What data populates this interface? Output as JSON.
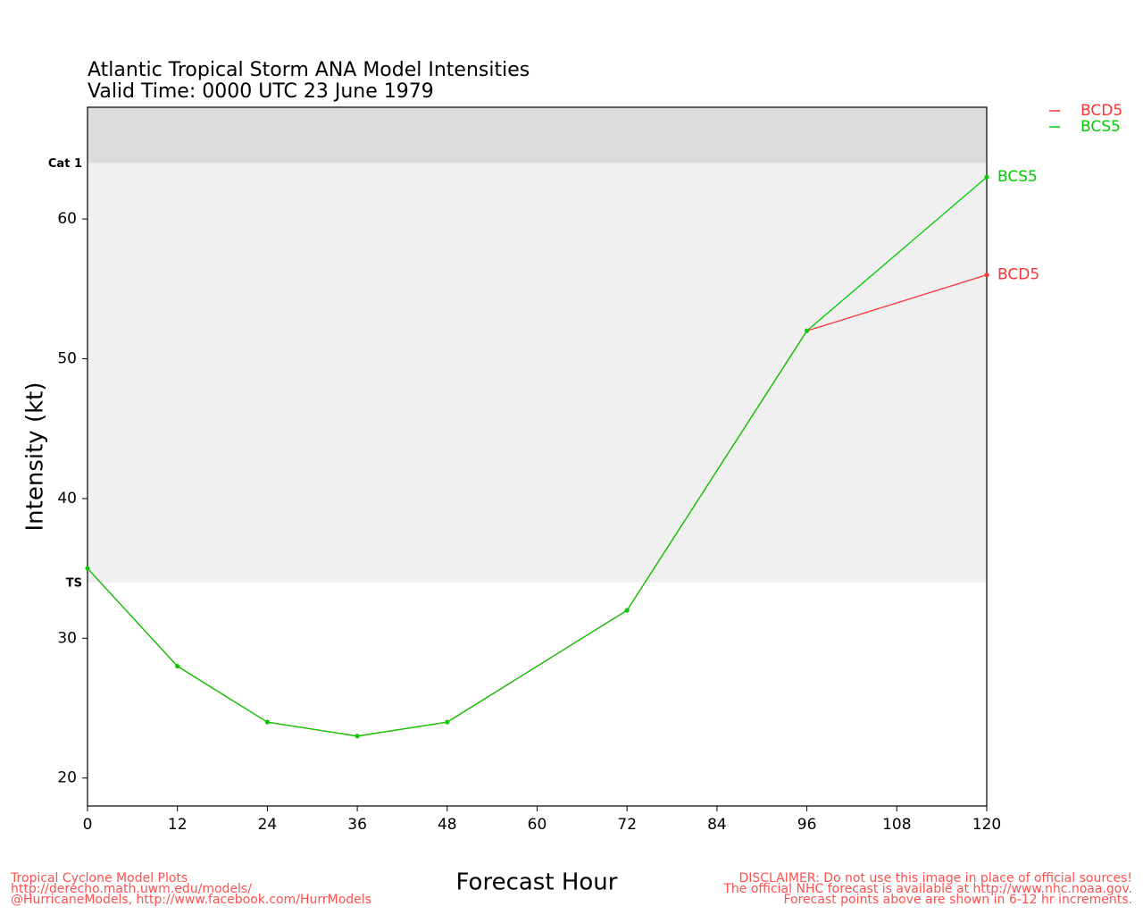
{
  "chart_data": {
    "type": "line",
    "title": "Atlantic Tropical Storm ANA Model Intensities",
    "subtitle": "Valid Time: 0000 UTC 23 June 1979",
    "x_label": "Forecast Hour",
    "y_label": "Intensity (kt)",
    "x": [
      0,
      12,
      24,
      36,
      48,
      72,
      96,
      120
    ],
    "series": [
      {
        "name": "BCD5",
        "color": "#ff3333",
        "values": [
          35,
          28,
          24,
          23,
          24,
          32,
          52,
          56
        ]
      },
      {
        "name": "BCS5",
        "color": "#00cc00",
        "values": [
          35,
          28,
          24,
          23,
          24,
          32,
          52,
          63
        ]
      }
    ],
    "xlim": [
      0,
      120
    ],
    "xticks": [
      0,
      12,
      24,
      36,
      48,
      60,
      72,
      84,
      96,
      108,
      120
    ],
    "ylim": [
      18,
      68
    ],
    "yticks": [
      20,
      30,
      40,
      50,
      60
    ],
    "thresholds": [
      {
        "label": "Cat 1",
        "value": 64
      },
      {
        "label": "TS",
        "value": 34
      }
    ],
    "credits": [
      "Tropical Cyclone Model Plots",
      "http://derecho.math.uwm.edu/models/",
      "@HurricaneModels, http://www.facebook.com/HurrModels"
    ],
    "disclaimer": [
      "DISCLAIMER: Do not use this image in place of official sources!",
      "The official NHC forecast is available at http://www.nhc.noaa.gov.",
      "Forecast points above are shown in 6-12 hr increments."
    ]
  }
}
